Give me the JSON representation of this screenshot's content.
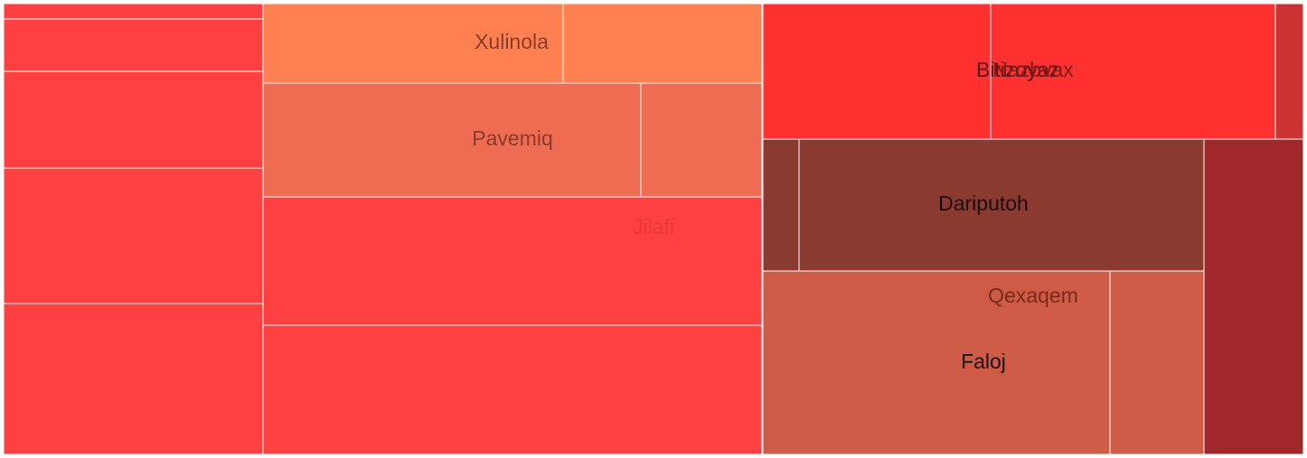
{
  "chart_data": {
    "type": "treemap",
    "title": "",
    "tiles": [
      {
        "label": "",
        "value": 2,
        "color": "#ff4040"
      },
      {
        "label": "",
        "value": 8,
        "color": "#ff4040"
      },
      {
        "label": "",
        "value": 15,
        "color": "#ff4040"
      },
      {
        "label": "",
        "value": 21,
        "color": "#ff4040"
      },
      {
        "label": "",
        "value": 24,
        "color": "#ff4040"
      },
      {
        "label": "Xulinola",
        "value": 15,
        "color": "#ff8050",
        "label_color": "#8b3a2a"
      },
      {
        "label": "",
        "value": 10,
        "color": "#ff8050"
      },
      {
        "label": "Pavemiq",
        "value": 26,
        "color": "#ee6c52",
        "label_color": "#8b3a2a"
      },
      {
        "label": "",
        "value": 8,
        "color": "#ee6c52"
      },
      {
        "label": "Jilafi",
        "value": 39,
        "color": "#ff4040",
        "label_color": "#e83838"
      },
      {
        "label": "",
        "value": 39,
        "color": "#ff4040"
      },
      {
        "label": "Bitizoyaz",
        "value": 19,
        "color": "#ff3030",
        "label_color": "#5a1010"
      },
      {
        "label": "Nazbvax",
        "value": 24,
        "color": "#ff3030",
        "label_color": "#7a1a1a"
      },
      {
        "label": "",
        "value": 2,
        "color": "#cc3333"
      },
      {
        "label": "",
        "value": 3,
        "color": "#8b3a2f"
      },
      {
        "label": "Dariputoh",
        "value": 33,
        "color": "#8b3a2f",
        "label_color": "#1a0a0a"
      },
      {
        "label": "Qexaqem",
        "value": 39,
        "color": "#cd5b45",
        "label_color": "#7a2a1a"
      },
      {
        "label": "Faloj",
        "value": 10,
        "color": "#cd5b45",
        "label_color": "#1a0a0a"
      },
      {
        "label": "",
        "value": 17,
        "color": "#a0282a"
      }
    ]
  }
}
